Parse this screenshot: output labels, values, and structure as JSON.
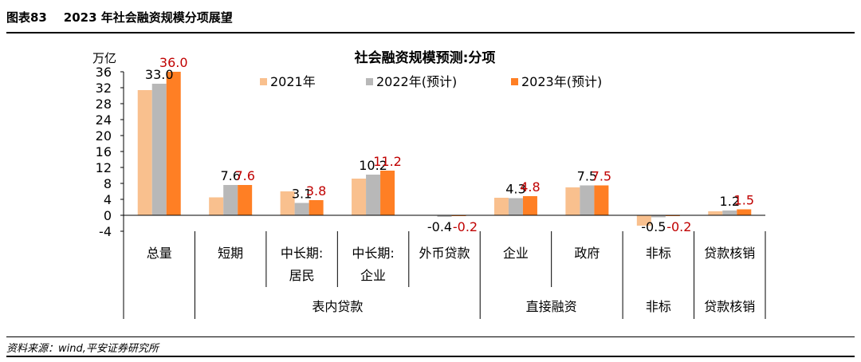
{
  "figure": {
    "number": "图表83",
    "title": "2023 年社会融资规模分项展望",
    "source": "资料来源：wind,平安证券研究所"
  },
  "chart_data": {
    "type": "bar",
    "title": "社会融资规模预测:分项",
    "ylabel": "万亿",
    "ylim": [
      -4,
      36
    ],
    "yticks": [
      -4,
      0,
      4,
      8,
      12,
      16,
      20,
      24,
      28,
      32,
      36
    ],
    "categories": [
      "总量",
      "短期",
      "中长期:居民",
      "中长期:企业",
      "外币贷款",
      "企业",
      "政府",
      "非标",
      "贷款核销"
    ],
    "category_lines": [
      [
        "总量"
      ],
      [
        "短期"
      ],
      [
        "中长期:",
        "居民"
      ],
      [
        "中长期:",
        "企业"
      ],
      [
        "外币贷款"
      ],
      [
        "企业"
      ],
      [
        "政府"
      ],
      [
        "非标"
      ],
      [
        "贷款核销"
      ]
    ],
    "groups": [
      {
        "label": "",
        "start": 0,
        "end": 0
      },
      {
        "label": "表内贷款",
        "start": 1,
        "end": 4
      },
      {
        "label": "直接融资",
        "start": 5,
        "end": 6
      },
      {
        "label": "非标",
        "start": 7,
        "end": 7
      },
      {
        "label": "贷款核销",
        "start": 8,
        "end": 8
      }
    ],
    "series": [
      {
        "name": "2021年",
        "color": "#F9C08E",
        "values": [
          31.4,
          4.5,
          6.0,
          9.2,
          0.1,
          4.4,
          7.0,
          -2.6,
          1.0
        ]
      },
      {
        "name": "2022年(预计)",
        "color": "#B8B8B8",
        "values": [
          33.0,
          7.6,
          3.1,
          10.2,
          -0.4,
          4.3,
          7.5,
          -0.5,
          1.2
        ]
      },
      {
        "name": "2023年(预计)",
        "color": "#FF7F24",
        "values": [
          36.0,
          7.6,
          3.8,
          11.2,
          -0.2,
          4.8,
          7.5,
          -0.2,
          1.5
        ]
      }
    ],
    "data_labels": [
      {
        "series": 1,
        "category": 0,
        "text": "33.0",
        "color": "#000000"
      },
      {
        "series": 2,
        "category": 0,
        "text": "36.0",
        "color": "#C00000"
      },
      {
        "series": 1,
        "category": 1,
        "text": "7.6",
        "color": "#000000"
      },
      {
        "series": 2,
        "category": 1,
        "text": "7.6",
        "color": "#C00000"
      },
      {
        "series": 1,
        "category": 2,
        "text": "3.1",
        "color": "#000000"
      },
      {
        "series": 2,
        "category": 2,
        "text": "3.8",
        "color": "#C00000"
      },
      {
        "series": 1,
        "category": 3,
        "text": "10.2",
        "color": "#000000"
      },
      {
        "series": 2,
        "category": 3,
        "text": "11.2",
        "color": "#C00000"
      },
      {
        "series": 1,
        "category": 4,
        "text": "-0.4",
        "color": "#000000"
      },
      {
        "series": 2,
        "category": 4,
        "text": "-0.2",
        "color": "#C00000"
      },
      {
        "series": 1,
        "category": 5,
        "text": "4.3",
        "color": "#000000"
      },
      {
        "series": 2,
        "category": 5,
        "text": "4.8",
        "color": "#C00000"
      },
      {
        "series": 1,
        "category": 6,
        "text": "7.5",
        "color": "#000000"
      },
      {
        "series": 2,
        "category": 6,
        "text": "7.5",
        "color": "#C00000"
      },
      {
        "series": 1,
        "category": 7,
        "text": "-0.5",
        "color": "#000000"
      },
      {
        "series": 2,
        "category": 7,
        "text": "-0.2",
        "color": "#C00000"
      },
      {
        "series": 1,
        "category": 8,
        "text": "1.2",
        "color": "#000000"
      },
      {
        "series": 2,
        "category": 8,
        "text": "1.5",
        "color": "#C00000"
      }
    ]
  }
}
